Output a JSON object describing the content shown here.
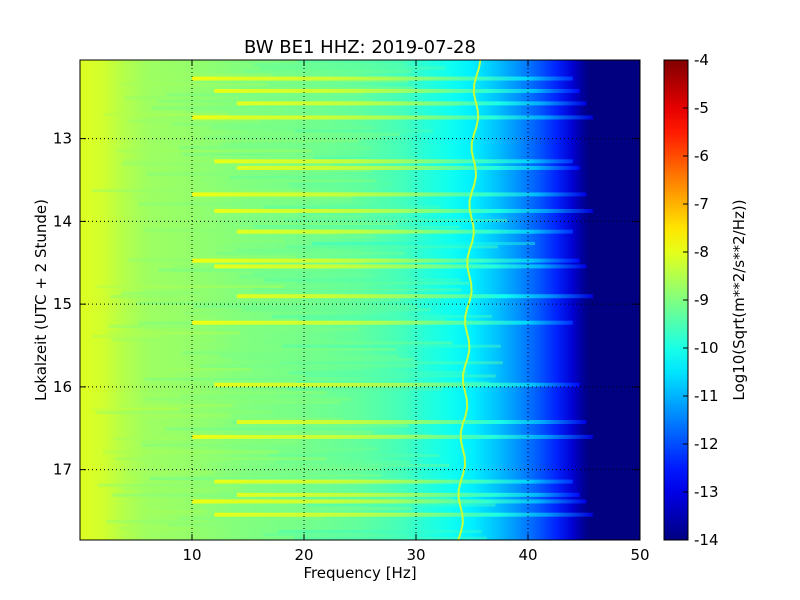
{
  "chart_data": {
    "type": "heatmap",
    "title": "BW BE1 HHZ: 2019-07-28",
    "xlabel": "Frequency [Hz]",
    "ylabel": "Lokalzeit (UTC + 2 Stunde)",
    "xlim": [
      0,
      50
    ],
    "ylim": [
      12.05,
      17.85
    ],
    "y_inverted": true,
    "x_ticks": [
      "10",
      "20",
      "30",
      "40",
      "50"
    ],
    "x_tick_values": [
      10,
      20,
      30,
      40,
      50
    ],
    "y_ticks": [
      "13",
      "14",
      "15",
      "16",
      "17"
    ],
    "y_tick_values": [
      13,
      14,
      15,
      16,
      17
    ],
    "grid": true,
    "colormap": "jet",
    "colorbar": {
      "label": "Log10(Sqrt(m**2/s**2/Hz))",
      "min": -14,
      "max": -4,
      "ticks": [
        "-4",
        "-5",
        "-6",
        "-7",
        "-8",
        "-9",
        "-10",
        "-11",
        "-12",
        "-13",
        "-14"
      ],
      "tick_values": [
        -4,
        -5,
        -6,
        -7,
        -8,
        -9,
        -10,
        -11,
        -12,
        -13,
        -14
      ]
    },
    "spectrum_profile": {
      "frequency_hz": [
        0.5,
        2,
        4,
        6,
        10,
        15,
        20,
        25,
        29,
        31,
        33,
        35,
        37,
        39,
        41,
        42.5,
        44,
        45,
        45.5,
        50
      ],
      "log10_amplitude": [
        -8.1,
        -8.2,
        -8.5,
        -8.7,
        -8.8,
        -9.0,
        -9.1,
        -9.3,
        -9.6,
        -9.9,
        -10.1,
        -10.4,
        -10.8,
        -11.3,
        -11.9,
        -12.4,
        -13.2,
        -13.8,
        -14.0,
        -14.0
      ]
    },
    "spectral_line": {
      "frequency_hz": 35.5,
      "log10_amplitude": -10.1
    },
    "banded_times": [
      12.25,
      12.4,
      12.55,
      12.72,
      13.25,
      13.33,
      13.65,
      13.85,
      14.1,
      14.45,
      14.52,
      14.88,
      15.2,
      15.95,
      16.4,
      16.58,
      17.12,
      17.28,
      17.36,
      17.52
    ]
  }
}
